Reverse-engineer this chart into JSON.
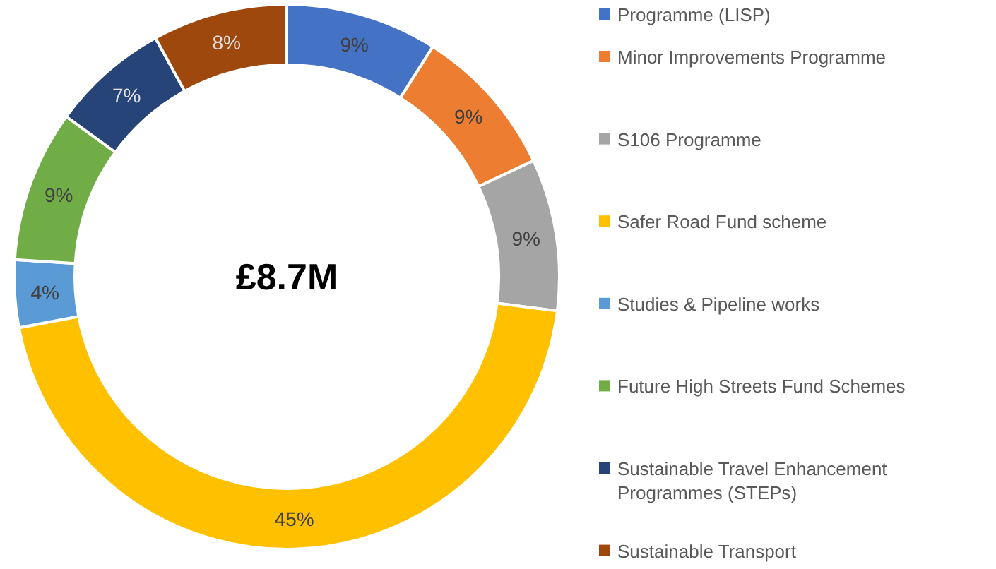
{
  "chart_data": {
    "type": "donut",
    "title": "£8.7M",
    "categories": [
      "Programme (LISP)",
      "Minor Improvements Programme",
      "S106 Programme",
      " Safer Road Fund scheme",
      "Studies & Pipeline works",
      "Future High Streets Fund Schemes",
      "Sustainable Travel Enhancement Programmes (STEPs)",
      "Sustainable Transport"
    ],
    "values": [
      9,
      9,
      9,
      45,
      4,
      9,
      7,
      8
    ],
    "colors": [
      "#4472c4",
      "#ed7d31",
      "#a5a5a5",
      "#ffc000",
      "#5b9bd5",
      "#70ad47",
      "#264478",
      "#9e480e"
    ],
    "value_labels": [
      "9%",
      "9%",
      "9%",
      "45%",
      "4%",
      "9%",
      "7%",
      "8%"
    ],
    "legend": "right"
  }
}
